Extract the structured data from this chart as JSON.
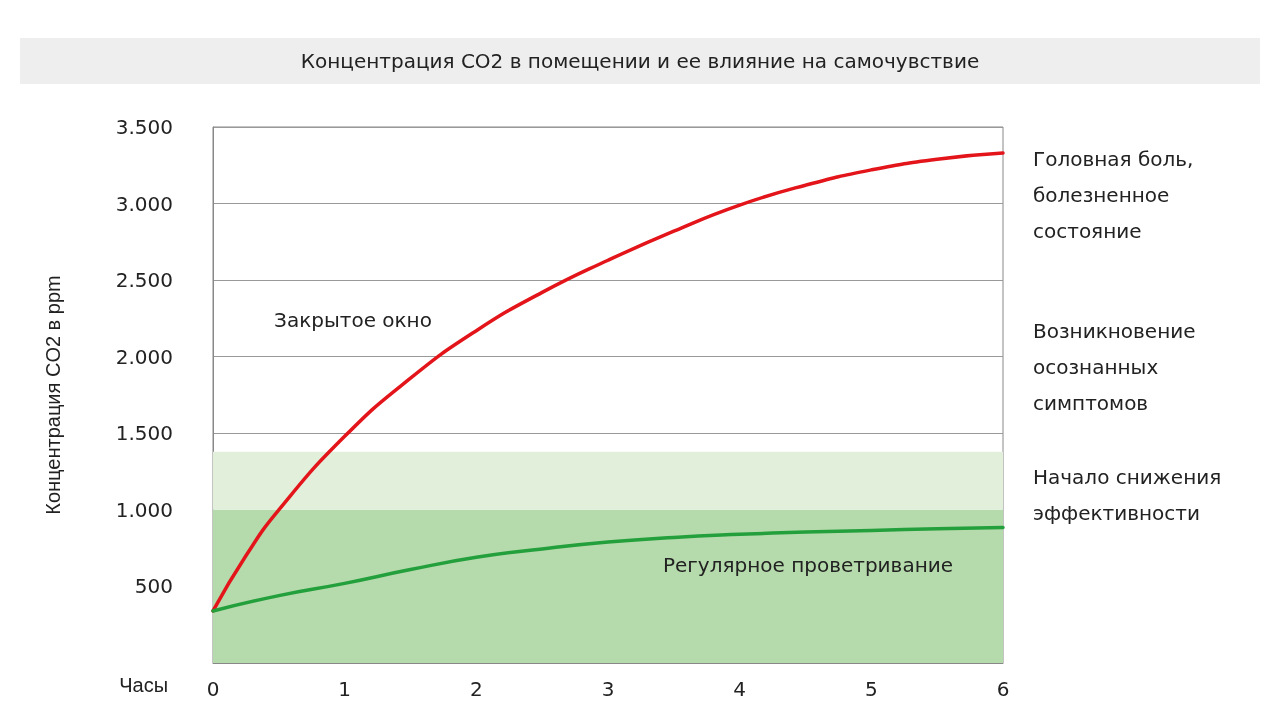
{
  "chart_data": {
    "type": "line",
    "title": "Концентрация CO2 в помещении и ее влияние на самочувствие",
    "xlabel": "Часы",
    "ylabel": "Концентрация CO2 в ppm",
    "series": [
      {
        "name": "Закрытое окно",
        "color": "#e3151a",
        "x": [
          0,
          0.25,
          0.5,
          1,
          1.5,
          2,
          2.5,
          3,
          3.5,
          4,
          4.5,
          5,
          5.5,
          6
        ],
        "values": [
          340,
          700,
          1000,
          1480,
          1860,
          2170,
          2420,
          2630,
          2820,
          2990,
          3120,
          3220,
          3290,
          3330
        ]
      },
      {
        "name": "Регулярное проветривание",
        "color": "#23a03c",
        "x": [
          0,
          0.5,
          1,
          1.5,
          2,
          2.5,
          3,
          3.5,
          4,
          4.5,
          5,
          5.5,
          6
        ],
        "values": [
          340,
          440,
          520,
          610,
          690,
          745,
          790,
          820,
          840,
          855,
          866,
          876,
          885
        ]
      }
    ],
    "xlim": [
      0,
      6
    ],
    "xticks": [
      0,
      1,
      2,
      3,
      4,
      5,
      6
    ],
    "ylim": [
      0,
      3500
    ],
    "yticks": [
      {
        "value": 500,
        "label": "500"
      },
      {
        "value": 1000,
        "label": "1.000"
      },
      {
        "value": 1500,
        "label": "1.500"
      },
      {
        "value": 2000,
        "label": "2.000"
      },
      {
        "value": 2500,
        "label": "2.500"
      },
      {
        "value": 3000,
        "label": "3.000"
      },
      {
        "value": 3500,
        "label": "3.500"
      }
    ],
    "bands": [
      {
        "axis": "y",
        "from": 0,
        "to": 1000,
        "color": "#b5daab"
      },
      {
        "axis": "y",
        "from": 1000,
        "to": 1380,
        "color": "#e1efdb"
      }
    ],
    "annotations": [
      "Головная боль,\nболезненное\nсостояние",
      "Возникновение\nосознанных\nсимптомов",
      {
        "text": "Начало снижения\nэффективности",
        "x": 6,
        "y": 1100
      }
    ],
    "grid": "y",
    "marker": "none",
    "line_style": "solid"
  }
}
